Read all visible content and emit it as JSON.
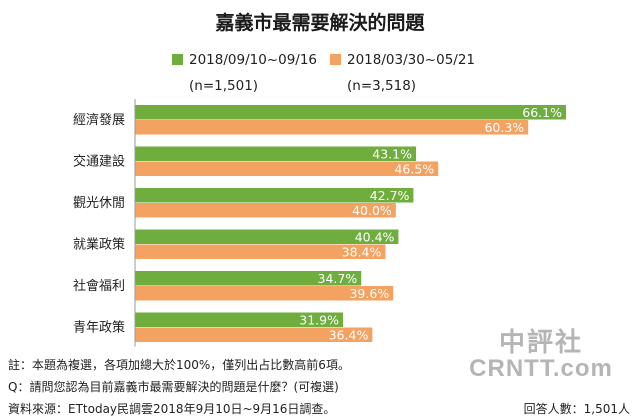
{
  "chart_data": {
    "type": "bar",
    "orientation": "horizontal",
    "title": "嘉義市最需要解決的問題",
    "categories": [
      "經濟發展",
      "交通建設",
      "觀光休閒",
      "就業政策",
      "社會福利",
      "青年政策"
    ],
    "series": [
      {
        "name": "2018/09/10~09/16",
        "sample": "(n=1,501)",
        "color": "#6fad3f",
        "values": [
          66.1,
          43.1,
          42.7,
          40.4,
          34.7,
          31.9
        ],
        "labels": [
          "66.1%",
          "43.1%",
          "42.7%",
          "40.4%",
          "34.7%",
          "31.9%"
        ]
      },
      {
        "name": "2018/03/30~05/21",
        "sample": "(n=3,518)",
        "color": "#f4a261",
        "values": [
          60.3,
          46.5,
          40.0,
          38.4,
          39.6,
          36.4
        ],
        "labels": [
          "60.3%",
          "46.5%",
          "40.0%",
          "38.4%",
          "39.6%",
          "36.4%"
        ]
      }
    ],
    "xlim": [
      0,
      70
    ],
    "grid": false,
    "legend_position": "top"
  },
  "notes": {
    "note1": "註：本題為複選，各項加總大於100%，僅列出占比數高前6項。",
    "note2": "Q：請問您認為目前嘉義市最需要解決的問題是什麼？(可複選)",
    "source": "資料來源：ETtoday民調雲2018年9月10日~9月16日調查。",
    "respondents": "回答人數：1,501人"
  },
  "watermark": {
    "line1": "中評社",
    "line2": "CRNTT.com"
  }
}
